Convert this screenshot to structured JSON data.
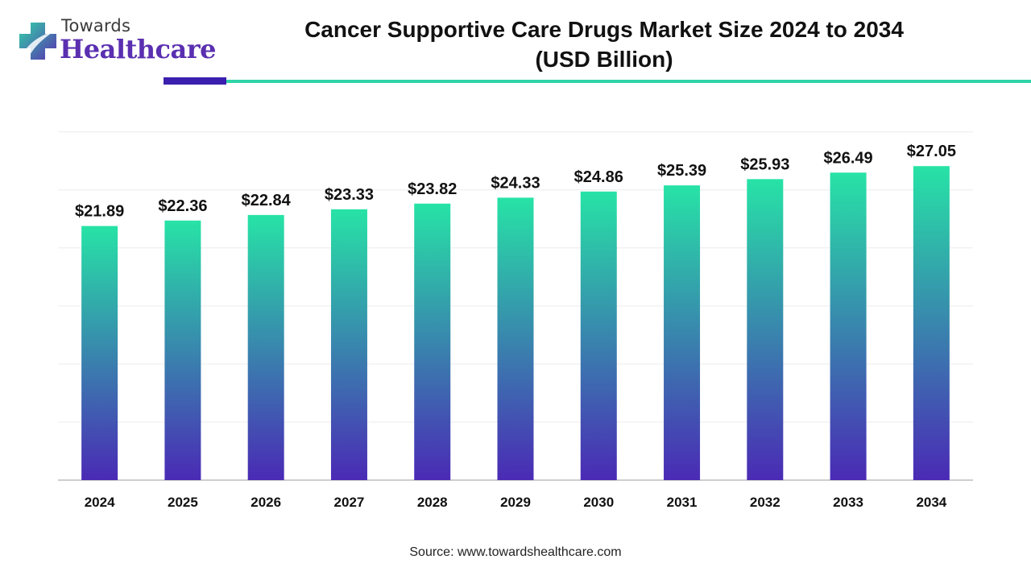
{
  "logo": {
    "top_text": "Towards",
    "main_text": "Healthcare"
  },
  "colors": {
    "bar_top": "#27e3a6",
    "bar_bottom": "#4a2ab5",
    "accent_dark": "#3b1fae",
    "accent_teal": "#2fd4a8",
    "logo_purple": "#5a2fb0"
  },
  "source_text": "Source: www.towardshealthcare.com",
  "chart_data": {
    "type": "bar",
    "title": "Cancer Supportive Care Drugs Market Size 2024 to 2034",
    "subtitle": "(USD Billion)",
    "xlabel": "",
    "ylabel": "",
    "categories": [
      "2024",
      "2025",
      "2026",
      "2027",
      "2028",
      "2029",
      "2030",
      "2031",
      "2032",
      "2033",
      "2034"
    ],
    "values": [
      21.89,
      22.36,
      22.84,
      23.33,
      23.82,
      24.33,
      24.86,
      25.39,
      25.93,
      26.49,
      27.05
    ],
    "data_labels": [
      "$21.89",
      "$22.36",
      "$22.84",
      "$23.33",
      "$23.82",
      "$24.33",
      "$24.86",
      "$25.39",
      "$25.93",
      "$26.49",
      "$27.05"
    ],
    "ylim": [
      0,
      30
    ],
    "grid": true,
    "legend": "none"
  }
}
